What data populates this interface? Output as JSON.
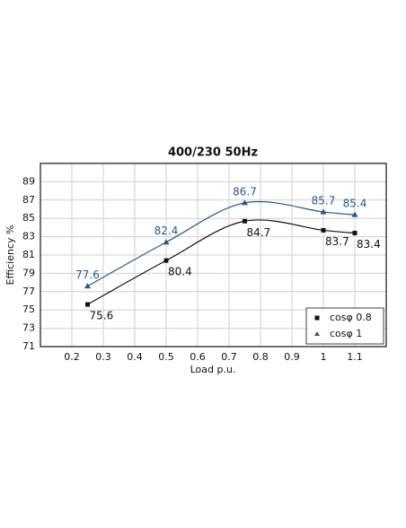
{
  "chart_data": {
    "type": "line",
    "title": "400/230 50Hz",
    "x_label": "Load p.u.",
    "y_label": "Efficiency %",
    "x": [
      0.25,
      0.5,
      0.75,
      1.0,
      1.1
    ],
    "series": [
      {
        "name": "cosφ 0.8",
        "color": "#111111",
        "marker": "square",
        "values": [
          75.6,
          80.4,
          84.7,
          83.7,
          83.4
        ]
      },
      {
        "name": "cosφ 1",
        "color": "#1f5a8f",
        "marker": "triangle",
        "values": [
          77.6,
          82.4,
          86.7,
          85.7,
          85.4
        ]
      }
    ],
    "xlim": [
      0.1,
      1.2
    ],
    "xticks": [
      0.2,
      0.3,
      0.4,
      0.5,
      0.6,
      0.7,
      0.8,
      0.9,
      1.0,
      1.1
    ],
    "ylim": [
      71,
      91
    ],
    "yticks": [
      71,
      73,
      75,
      77,
      79,
      81,
      83,
      85,
      87,
      89
    ],
    "grid": true,
    "legend": "lower right"
  }
}
